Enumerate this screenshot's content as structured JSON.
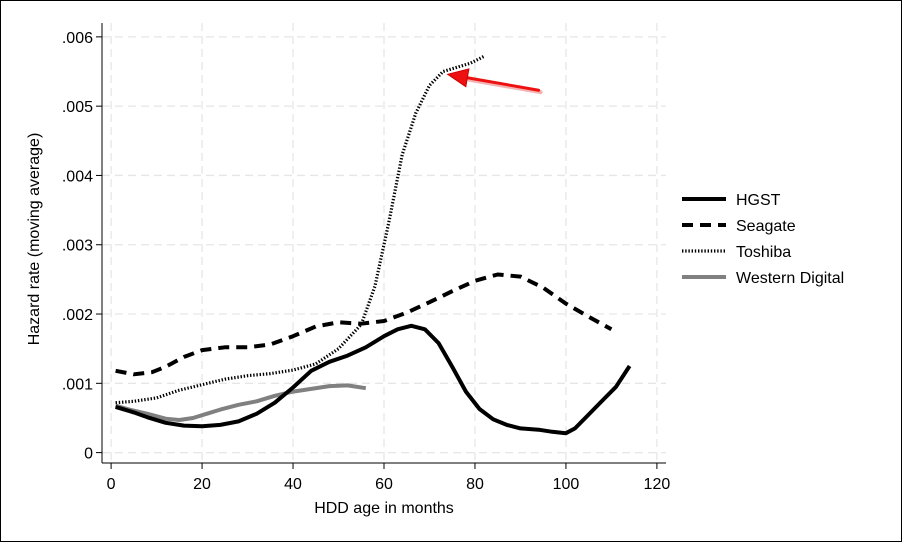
{
  "chart_data": {
    "type": "line",
    "xlabel": "HDD age in months",
    "ylabel": "Hazard rate (moving average)",
    "xlim": [
      -2,
      122
    ],
    "ylim": [
      -0.00015,
      0.0062
    ],
    "x_ticks": [
      0,
      20,
      40,
      60,
      80,
      100,
      120
    ],
    "x_tick_labels": [
      "0",
      "20",
      "40",
      "60",
      "80",
      "100",
      "120"
    ],
    "y_ticks": [
      0,
      0.001,
      0.002,
      0.003,
      0.004,
      0.005,
      0.006
    ],
    "y_tick_labels": [
      "0",
      ".001",
      ".002",
      ".003",
      ".004",
      ".005",
      ".006"
    ],
    "grid": true,
    "legend_position": "right",
    "series": [
      {
        "name": "HGST",
        "style": "solid",
        "color": "#000000",
        "x": [
          1,
          5,
          8,
          12,
          16,
          20,
          24,
          28,
          32,
          36,
          40,
          44,
          48,
          52,
          56,
          60,
          63,
          66,
          69,
          72,
          75,
          78,
          81,
          84,
          87,
          90,
          94,
          97,
          100,
          102,
          105,
          108,
          111,
          114
        ],
        "y": [
          0.00066,
          0.00058,
          0.00051,
          0.00043,
          0.00039,
          0.00038,
          0.0004,
          0.00045,
          0.00056,
          0.00072,
          0.00094,
          0.00118,
          0.00131,
          0.0014,
          0.00152,
          0.00168,
          0.00178,
          0.00183,
          0.00178,
          0.00158,
          0.00124,
          0.00088,
          0.00063,
          0.00048,
          0.0004,
          0.00035,
          0.00033,
          0.0003,
          0.00028,
          0.00035,
          0.00055,
          0.00075,
          0.00095,
          0.00125
        ]
      },
      {
        "name": "Seagate",
        "style": "dashed",
        "color": "#000000",
        "x": [
          1,
          5,
          9,
          12,
          16,
          20,
          25,
          30,
          35,
          40,
          45,
          50,
          55,
          60,
          65,
          70,
          75,
          80,
          85,
          90,
          95,
          100,
          105,
          110
        ],
        "y": [
          0.00118,
          0.00113,
          0.00116,
          0.00124,
          0.00138,
          0.00148,
          0.00152,
          0.00152,
          0.00156,
          0.00168,
          0.00182,
          0.00188,
          0.00186,
          0.0019,
          0.00202,
          0.00217,
          0.00233,
          0.00248,
          0.00257,
          0.00254,
          0.00238,
          0.00215,
          0.00196,
          0.00178
        ]
      },
      {
        "name": "Toshiba",
        "style": "dotted",
        "color": "#000000",
        "x": [
          1,
          5,
          10,
          15,
          20,
          25,
          30,
          35,
          40,
          45,
          50,
          55,
          58,
          61,
          64,
          67,
          70,
          73,
          76,
          79,
          82
        ],
        "y": [
          0.00072,
          0.00074,
          0.00079,
          0.0009,
          0.00098,
          0.00106,
          0.00111,
          0.00114,
          0.00119,
          0.00128,
          0.0015,
          0.00185,
          0.0024,
          0.0033,
          0.0043,
          0.0049,
          0.0053,
          0.0055,
          0.00556,
          0.00562,
          0.00572
        ]
      },
      {
        "name": "Western Digital",
        "style": "solid",
        "color": "#808080",
        "x": [
          1,
          4,
          8,
          12,
          15,
          18,
          21,
          24,
          28,
          32,
          36,
          40,
          44,
          48,
          52,
          56
        ],
        "y": [
          0.00068,
          0.00062,
          0.00056,
          0.00049,
          0.00047,
          0.0005,
          0.00056,
          0.00062,
          0.00069,
          0.00074,
          0.00082,
          0.00088,
          0.00092,
          0.00096,
          0.00097,
          0.00093
        ]
      }
    ],
    "annotations": [
      {
        "type": "arrow",
        "color": "#ee1111",
        "from": [
          94,
          0.00523
        ],
        "to": [
          74,
          0.00546
        ]
      }
    ]
  }
}
